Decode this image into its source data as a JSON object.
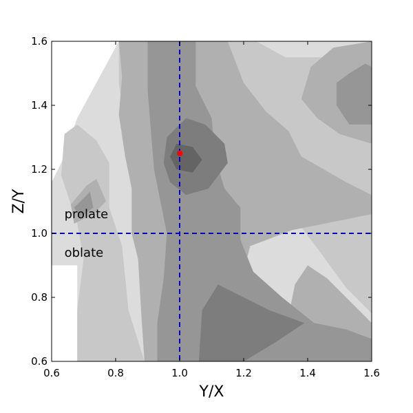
{
  "chart_data": {
    "type": "contour",
    "title": "",
    "xlabel": "Y/X",
    "ylabel": "Z/Y",
    "xlim": [
      0.6,
      1.6
    ],
    "ylim": [
      0.6,
      1.6
    ],
    "xticks": [
      "0.6",
      "0.8",
      "1.0",
      "1.2",
      "1.4",
      "1.6"
    ],
    "yticks": [
      "0.6",
      "0.8",
      "1.0",
      "1.2",
      "1.4",
      "1.6"
    ],
    "grid": false,
    "reference_lines": [
      {
        "orientation": "vertical",
        "value": 1.0,
        "color": "#0000cc",
        "style": "dashed"
      },
      {
        "orientation": "horizontal",
        "value": 1.0,
        "color": "#0000cc",
        "style": "dashed"
      }
    ],
    "marker": {
      "x": 1.0,
      "y": 1.25,
      "color": "#ff0000"
    },
    "annotations": [
      {
        "text": "prolate",
        "x": 0.64,
        "y": 1.06
      },
      {
        "text": "oblate",
        "x": 0.64,
        "y": 0.94
      }
    ],
    "contour_levels": [
      {
        "level": 1,
        "color": "#dcdcdc",
        "regions": [
          [
            [
              0.68,
              0.6
            ],
            [
              1.37,
              0.6
            ],
            [
              1.6,
              0.72
            ],
            [
              1.6,
              1.6
            ],
            [
              0.81,
              1.6
            ],
            [
              0.68,
              1.36
            ],
            [
              0.63,
              1.22
            ],
            [
              0.6,
              1.16
            ],
            [
              0.6,
              0.9
            ],
            [
              0.68,
              0.9
            ]
          ]
        ]
      },
      {
        "level": 2,
        "color": "#c8c8c8",
        "regions": [
          [
            [
              0.68,
              0.6
            ],
            [
              0.89,
              0.6
            ],
            [
              0.84,
              0.76
            ],
            [
              0.82,
              0.96
            ],
            [
              0.78,
              1.08
            ],
            [
              0.78,
              1.22
            ],
            [
              0.74,
              1.29
            ],
            [
              0.68,
              1.34
            ],
            [
              0.64,
              1.31
            ],
            [
              0.63,
              1.18
            ],
            [
              0.68,
              1.03
            ],
            [
              0.7,
              0.92
            ],
            [
              0.68,
              0.76
            ]
          ],
          [
            [
              0.81,
              1.6
            ],
            [
              1.24,
              1.6
            ],
            [
              1.33,
              1.55
            ],
            [
              1.6,
              1.55
            ],
            [
              1.6,
              1.06
            ],
            [
              1.28,
              1.01
            ],
            [
              1.16,
              1.06
            ],
            [
              1.05,
              1.12
            ],
            [
              0.93,
              1.13
            ],
            [
              0.83,
              1.32
            ],
            [
              0.81,
              1.47
            ]
          ],
          [
            [
              1.6,
              0.75
            ],
            [
              1.52,
              0.83
            ],
            [
              1.44,
              0.94
            ],
            [
              1.38,
              1.02
            ],
            [
              1.6,
              1.07
            ]
          ]
        ]
      },
      {
        "level": 3,
        "color": "#b0b0b0",
        "regions": [
          [
            [
              0.89,
              0.6
            ],
            [
              0.88,
              0.75
            ],
            [
              0.87,
              0.92
            ],
            [
              0.85,
              1.0
            ],
            [
              0.85,
              1.14
            ],
            [
              0.83,
              1.24
            ],
            [
              0.81,
              1.37
            ],
            [
              0.82,
              1.49
            ],
            [
              0.81,
              1.6
            ],
            [
              1.15,
              1.6
            ],
            [
              1.2,
              1.47
            ],
            [
              1.27,
              1.38
            ],
            [
              1.34,
              1.32
            ],
            [
              1.38,
              1.24
            ],
            [
              1.45,
              1.2
            ],
            [
              1.52,
              1.16
            ],
            [
              1.6,
              1.12
            ],
            [
              1.6,
              1.06
            ],
            [
              1.35,
              1.01
            ],
            [
              1.22,
              0.96
            ],
            [
              1.2,
              0.88
            ],
            [
              1.14,
              0.82
            ],
            [
              1.08,
              0.78
            ],
            [
              1.03,
              0.7
            ],
            [
              1.02,
              0.6
            ]
          ],
          [
            [
              1.38,
              1.42
            ],
            [
              1.41,
              1.52
            ],
            [
              1.48,
              1.58
            ],
            [
              1.6,
              1.6
            ],
            [
              1.6,
              1.28
            ],
            [
              1.5,
              1.31
            ],
            [
              1.43,
              1.36
            ]
          ],
          [
            [
              1.33,
              0.6
            ],
            [
              1.6,
              0.6
            ],
            [
              1.6,
              0.72
            ],
            [
              1.52,
              0.8
            ],
            [
              1.46,
              0.86
            ],
            [
              1.4,
              0.9
            ],
            [
              1.36,
              0.84
            ],
            [
              1.34,
              0.74
            ]
          ],
          [
            [
              0.66,
              1.09
            ],
            [
              0.71,
              1.15
            ],
            [
              0.74,
              1.17
            ],
            [
              0.77,
              1.1
            ],
            [
              0.73,
              1.06
            ],
            [
              0.67,
              1.03
            ]
          ]
        ]
      },
      {
        "level": 4,
        "color": "#969696",
        "regions": [
          [
            [
              0.93,
              0.6
            ],
            [
              0.93,
              0.72
            ],
            [
              0.95,
              0.86
            ],
            [
              0.96,
              1.0
            ],
            [
              0.94,
              1.1
            ],
            [
              0.92,
              1.2
            ],
            [
              0.91,
              1.32
            ],
            [
              0.9,
              1.45
            ],
            [
              0.9,
              1.6
            ],
            [
              1.05,
              1.6
            ],
            [
              1.05,
              1.46
            ],
            [
              1.1,
              1.36
            ],
            [
              1.11,
              1.24
            ],
            [
              1.14,
              1.14
            ],
            [
              1.19,
              1.08
            ],
            [
              1.19,
              0.98
            ],
            [
              1.23,
              0.88
            ],
            [
              1.32,
              0.8
            ],
            [
              1.42,
              0.72
            ],
            [
              1.52,
              0.7
            ],
            [
              1.6,
              0.67
            ],
            [
              1.6,
              0.6
            ]
          ],
          [
            [
              1.49,
              1.47
            ],
            [
              1.53,
              1.5
            ],
            [
              1.58,
              1.53
            ],
            [
              1.6,
              1.52
            ],
            [
              1.6,
              1.34
            ],
            [
              1.53,
              1.34
            ],
            [
              1.49,
              1.4
            ]
          ],
          [
            [
              0.67,
              1.08
            ],
            [
              0.72,
              1.13
            ],
            [
              0.73,
              1.08
            ],
            [
              0.69,
              1.05
            ]
          ]
        ]
      },
      {
        "level": 5,
        "color": "#7d7d7d",
        "regions": [
          [
            [
              0.95,
              1.22
            ],
            [
              0.96,
              1.3
            ],
            [
              1.02,
              1.36
            ],
            [
              1.08,
              1.34
            ],
            [
              1.14,
              1.28
            ],
            [
              1.15,
              1.22
            ],
            [
              1.09,
              1.14
            ],
            [
              1.02,
              1.12
            ],
            [
              0.97,
              1.16
            ]
          ],
          [
            [
              1.06,
              0.6
            ],
            [
              1.2,
              0.6
            ],
            [
              1.3,
              0.66
            ],
            [
              1.39,
              0.72
            ],
            [
              1.28,
              0.76
            ],
            [
              1.2,
              0.8
            ],
            [
              1.12,
              0.84
            ],
            [
              1.07,
              0.76
            ]
          ]
        ]
      },
      {
        "level": 6,
        "color": "#646464",
        "regions": [
          [
            [
              0.97,
              1.24
            ],
            [
              0.99,
              1.2
            ],
            [
              1.04,
              1.19
            ],
            [
              1.07,
              1.23
            ],
            [
              1.04,
              1.27
            ],
            [
              0.99,
              1.28
            ]
          ]
        ]
      }
    ]
  }
}
